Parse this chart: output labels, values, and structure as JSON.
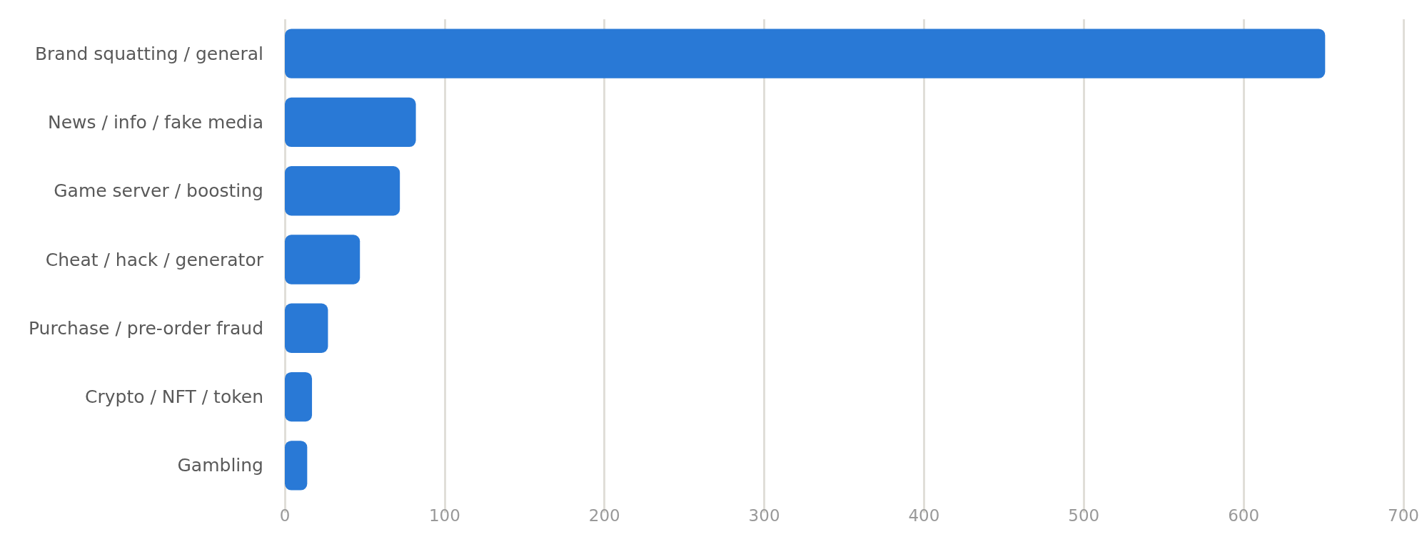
{
  "chart_data": {
    "type": "bar",
    "orientation": "horizontal",
    "categories": [
      "Brand squatting / general",
      "News / info / fake media",
      "Game server / boosting",
      "Cheat / hack / generator",
      "Purchase / pre-order fraud",
      "Crypto / NFT / token",
      "Gambling"
    ],
    "values": [
      651,
      82,
      72,
      47,
      27,
      17,
      14
    ],
    "color": "#2979d6",
    "xlim": [
      0,
      700
    ],
    "xticks": [
      0,
      100,
      200,
      300,
      400,
      500,
      600,
      700
    ],
    "grid": "x"
  }
}
